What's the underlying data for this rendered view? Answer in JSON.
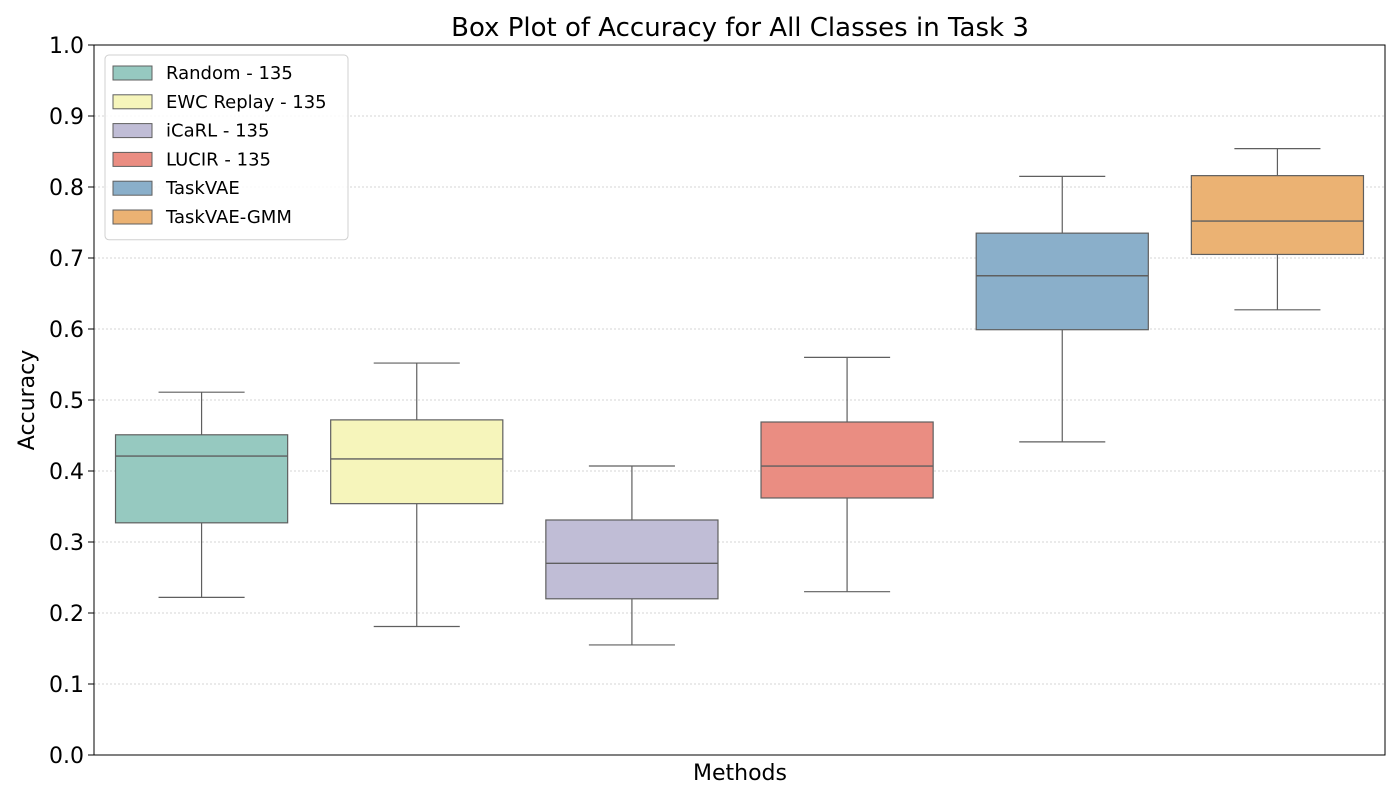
{
  "chart_data": {
    "type": "box",
    "title": "Box Plot of Accuracy for All Classes in Task 3",
    "xlabel": "Methods",
    "ylabel": "Accuracy",
    "ylim": [
      0.0,
      1.0
    ],
    "yticks": [
      "0.0",
      "0.1",
      "0.2",
      "0.3",
      "0.4",
      "0.5",
      "0.6",
      "0.7",
      "0.8",
      "0.9",
      "1.0"
    ],
    "grid": "horizontal-dotted",
    "legend_position": "top-left",
    "series": [
      {
        "name": "Random - 135",
        "color": "#96c9c0",
        "whisker_low": 0.222,
        "q1": 0.327,
        "median": 0.421,
        "q3": 0.451,
        "whisker_high": 0.511
      },
      {
        "name": "EWC Replay - 135",
        "color": "#f6f5bb",
        "whisker_low": 0.181,
        "q1": 0.354,
        "median": 0.417,
        "q3": 0.472,
        "whisker_high": 0.552
      },
      {
        "name": "iCaRL - 135",
        "color": "#c0bdd6",
        "whisker_low": 0.155,
        "q1": 0.22,
        "median": 0.27,
        "q3": 0.331,
        "whisker_high": 0.407
      },
      {
        "name": "LUCIR - 135",
        "color": "#ea8d82",
        "whisker_low": 0.23,
        "q1": 0.362,
        "median": 0.407,
        "q3": 0.469,
        "whisker_high": 0.56
      },
      {
        "name": "TaskVAE",
        "color": "#8aafca",
        "whisker_low": 0.441,
        "q1": 0.599,
        "median": 0.675,
        "q3": 0.735,
        "whisker_high": 0.815
      },
      {
        "name": "TaskVAE-GMM",
        "color": "#ebb273",
        "whisker_low": 0.627,
        "q1": 0.705,
        "median": 0.752,
        "q3": 0.816,
        "whisker_high": 0.854
      }
    ]
  }
}
